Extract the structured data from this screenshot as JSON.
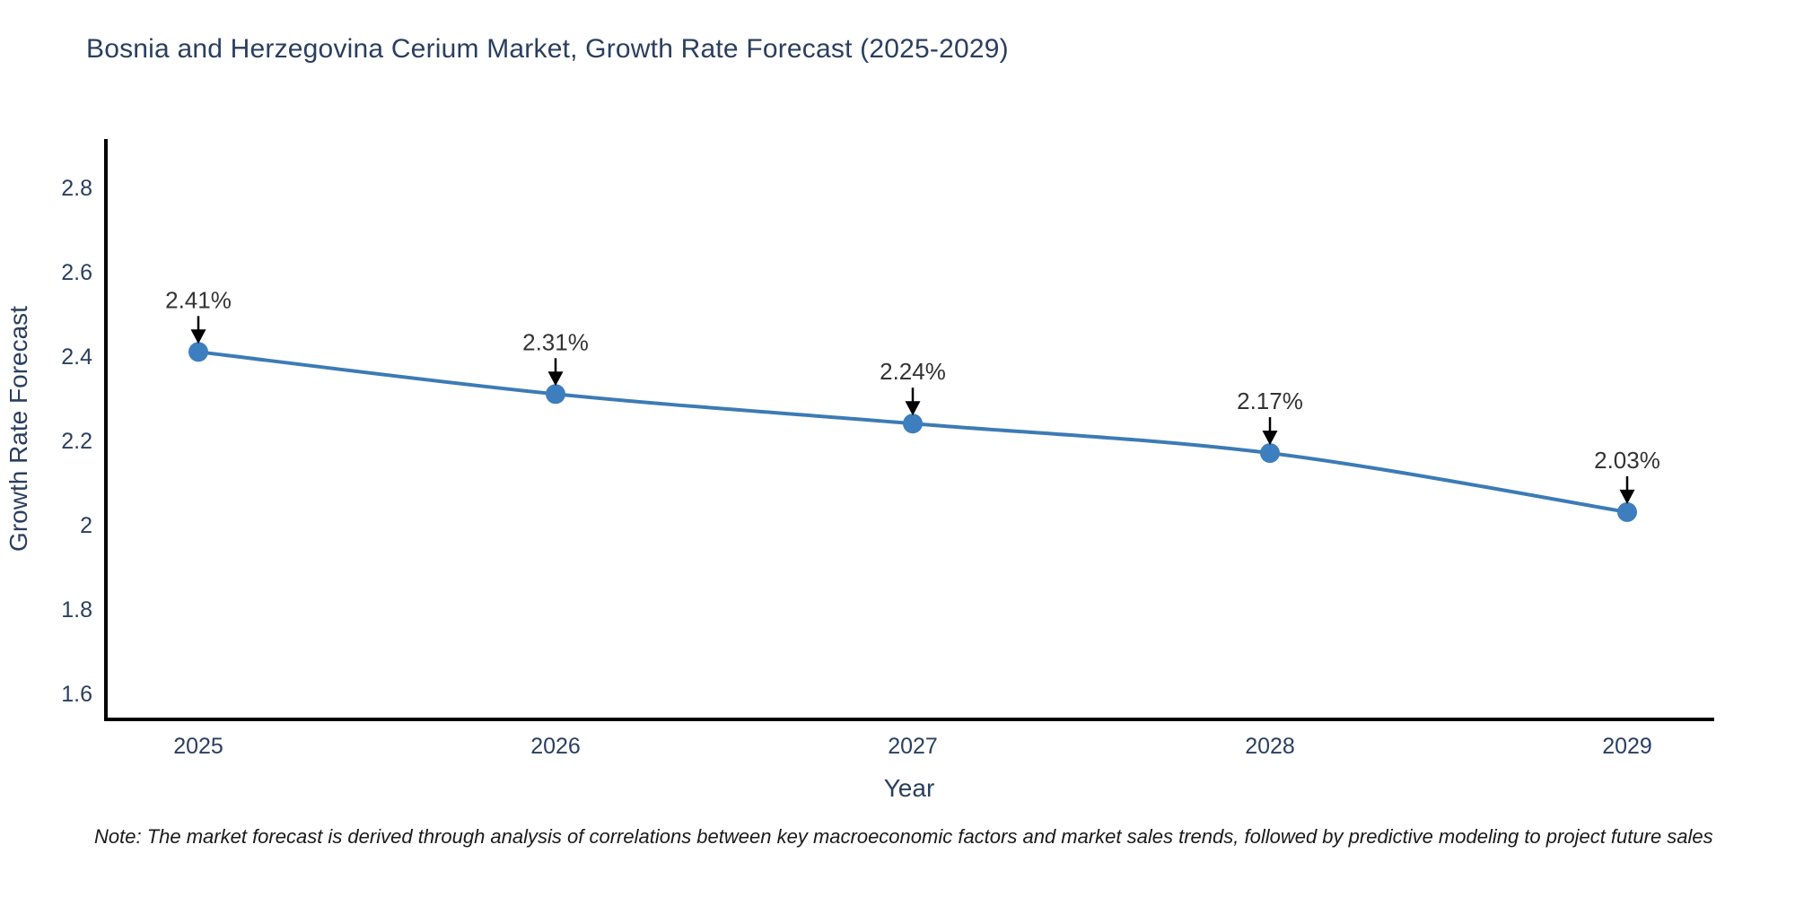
{
  "chart_data": {
    "type": "line",
    "title": "Bosnia and Herzegovina Cerium Market, Growth Rate Forecast (2025-2029)",
    "xlabel": "Year",
    "ylabel": "Growth Rate Forecast",
    "x": [
      2025,
      2026,
      2027,
      2028,
      2029
    ],
    "series": [
      {
        "name": "Growth Rate Forecast",
        "values": [
          2.41,
          2.31,
          2.24,
          2.17,
          2.03
        ]
      }
    ],
    "annotations": [
      {
        "x": 2025,
        "y": 2.41,
        "text": "2.41%"
      },
      {
        "x": 2026,
        "y": 2.31,
        "text": "2.31%"
      },
      {
        "x": 2027,
        "y": 2.24,
        "text": "2.24%"
      },
      {
        "x": 2028,
        "y": 2.17,
        "text": "2.17%"
      },
      {
        "x": 2029,
        "y": 2.03,
        "text": "2.03%"
      }
    ],
    "yticks": [
      2.8,
      2.6,
      2.4,
      2.2,
      2,
      1.8,
      1.6
    ],
    "ylim": [
      1.54,
      2.92
    ],
    "xlim": [
      2024.74,
      2029.24
    ],
    "grid": false,
    "legend": "none",
    "line_shape": "spline",
    "colors": {
      "line": "#3c7bb5",
      "marker": "#3d7ebf",
      "axis": "#000000",
      "tick_labels": "#2a3f5f",
      "title": "#2a3f5f",
      "annotation_text": "#333333",
      "annotation_arrow": "#000000",
      "note_text": "#1a1a1a",
      "background": "#ffffff"
    }
  },
  "footnote": {
    "text": "Note: The market forecast is derived through analysis of correlations between key macroeconomic factors and market sales trends, followed by predictive modeling to project future sales"
  }
}
